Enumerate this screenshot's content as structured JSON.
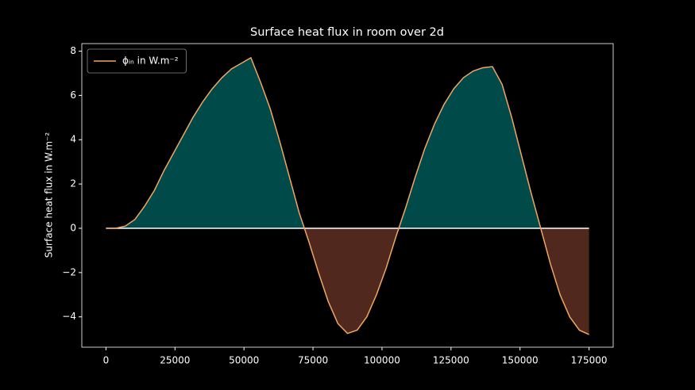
{
  "chart_data": {
    "type": "line",
    "title": "Surface heat flux in room over 2d",
    "y_label": "Surface heat flux in W.m⁻²",
    "x": [
      0,
      3500,
      7000,
      10500,
      14000,
      17500,
      21000,
      24500,
      28000,
      31500,
      35000,
      38500,
      42000,
      45500,
      49000,
      52500,
      56000,
      59500,
      63000,
      66500,
      70000,
      73500,
      77000,
      80500,
      84000,
      87500,
      91000,
      94500,
      98000,
      101500,
      105000,
      108500,
      112000,
      115500,
      119000,
      122500,
      126000,
      129500,
      133000,
      136500,
      140000,
      143500,
      147000,
      150500,
      154000,
      157500,
      161000,
      164500,
      168000,
      171500,
      175000
    ],
    "series": [
      {
        "name": "ϕᵢₙ in W.m⁻²",
        "color": "#f0a660",
        "values": [
          0,
          0,
          0.1,
          0.4,
          1.0,
          1.7,
          2.6,
          3.4,
          4.2,
          5.0,
          5.7,
          6.3,
          6.8,
          7.2,
          7.45,
          7.7,
          6.6,
          5.4,
          3.9,
          2.3,
          0.7,
          -0.6,
          -2.0,
          -3.3,
          -4.3,
          -4.75,
          -4.6,
          -4.0,
          -3.0,
          -1.8,
          -0.4,
          0.9,
          2.3,
          3.6,
          4.7,
          5.6,
          6.3,
          6.8,
          7.1,
          7.25,
          7.3,
          6.5,
          5.0,
          3.3,
          1.6,
          0.0,
          -1.6,
          -3.0,
          -4.0,
          -4.6,
          -4.8
        ]
      }
    ],
    "fill_positive_color": "#004a4a",
    "fill_negative_color": "#50281e",
    "zero_line_color": "#ffffff",
    "xlim": [
      -8750,
      183750
    ],
    "ylim": [
      -5.37,
      8.34
    ],
    "xticks": [
      0,
      25000,
      50000,
      75000,
      100000,
      125000,
      150000,
      175000
    ],
    "yticks": [
      {
        "value": -4,
        "label": "−4"
      },
      {
        "value": -2,
        "label": "−2"
      },
      0,
      2,
      4,
      6,
      8
    ],
    "legend": "upper left",
    "grid": false
  }
}
